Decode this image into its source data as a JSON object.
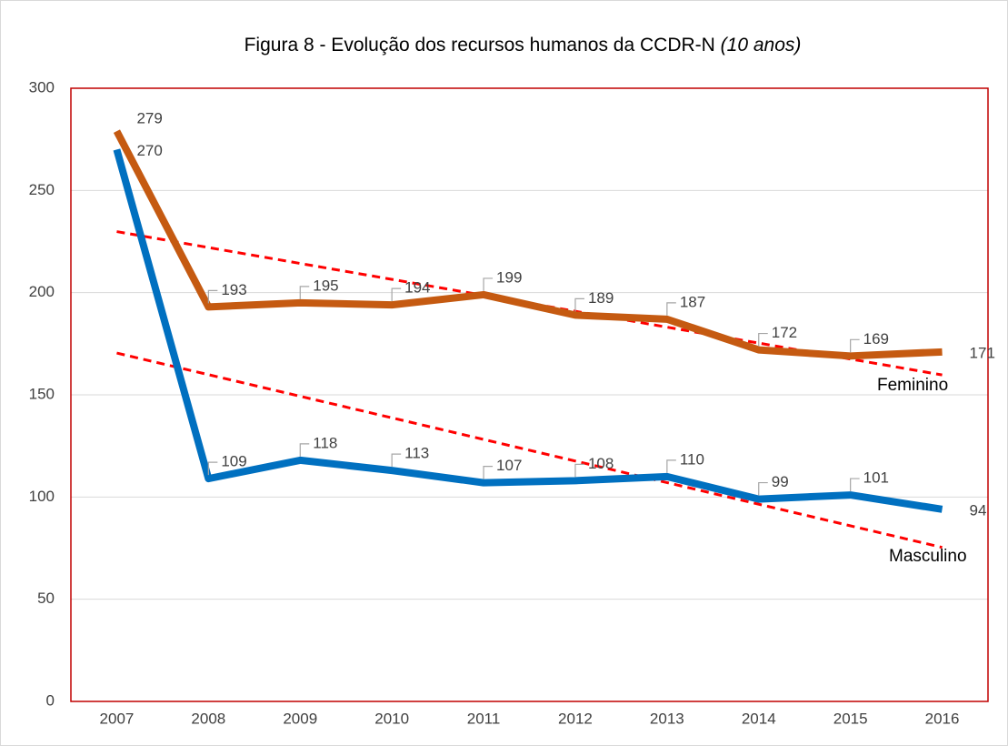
{
  "chart_data": {
    "type": "line",
    "title": "Figura 8 - Evolução dos recursos humanos da CCDR-N",
    "subtitle": "(10 anos)",
    "categories": [
      "2007",
      "2008",
      "2009",
      "2010",
      "2011",
      "2012",
      "2013",
      "2014",
      "2015",
      "2016"
    ],
    "series": [
      {
        "name": "Feminino",
        "color": "#c55a11",
        "values": [
          279,
          193,
          195,
          194,
          199,
          189,
          187,
          172,
          169,
          171
        ]
      },
      {
        "name": "Masculino",
        "color": "#0070c0",
        "values": [
          270,
          109,
          118,
          113,
          107,
          108,
          110,
          99,
          101,
          94
        ]
      }
    ],
    "ylim": [
      0,
      300
    ],
    "yticks": [
      0,
      50,
      100,
      150,
      200,
      250,
      300
    ],
    "grid": true,
    "trendline": true,
    "trendline_color": "#ff0000",
    "plot_border_color": "#c00000"
  }
}
